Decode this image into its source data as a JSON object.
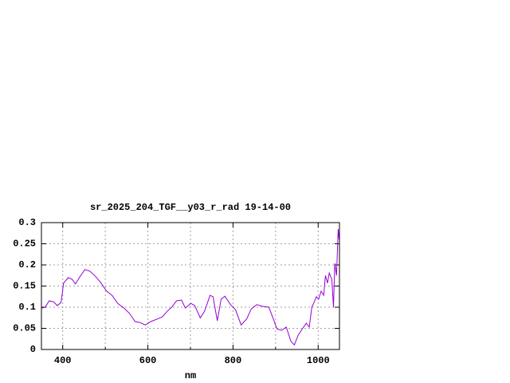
{
  "chart_data": {
    "type": "line",
    "title": "sr_2025_204_TGF__y03_r_rad 19-14-00",
    "xlabel": "nm",
    "xlim": [
      350,
      1050
    ],
    "ylim": [
      0,
      0.3
    ],
    "xticks": [
      400,
      600,
      800,
      1000
    ],
    "xgrid_minor": [
      500,
      700,
      900
    ],
    "yticks": [
      0,
      0.05,
      0.1,
      0.15,
      0.2,
      0.25,
      0.3
    ],
    "grid": true,
    "series": [
      {
        "name": "sr_2025_204_TGF__y03_r_rad",
        "color": "#9400d3",
        "x": [
          350,
          359,
          368,
          378,
          387,
          396,
          402,
          413,
          422,
          430,
          439,
          452,
          464,
          475,
          488,
          503,
          516,
          529,
          544,
          557,
          570,
          581,
          594,
          607,
          622,
          634,
          645,
          656,
          667,
          679,
          688,
          701,
          710,
          723,
          733,
          746,
          753,
          763,
          772,
          781,
          794,
          806,
          819,
          832,
          843,
          856,
          869,
          884,
          893,
          903,
          914,
          925,
          936,
          944,
          953,
          963,
          972,
          979,
          985,
          991,
          996,
          1001,
          1007,
          1013,
          1017,
          1022,
          1026,
          1032,
          1036,
          1039,
          1043,
          1047,
          1049
        ],
        "values": [
          0.098,
          0.1,
          0.115,
          0.113,
          0.104,
          0.111,
          0.157,
          0.17,
          0.166,
          0.155,
          0.17,
          0.189,
          0.185,
          0.175,
          0.16,
          0.138,
          0.128,
          0.109,
          0.098,
          0.085,
          0.066,
          0.064,
          0.058,
          0.066,
          0.072,
          0.077,
          0.09,
          0.1,
          0.115,
          0.117,
          0.098,
          0.109,
          0.104,
          0.075,
          0.09,
          0.128,
          0.125,
          0.068,
          0.119,
          0.126,
          0.106,
          0.094,
          0.058,
          0.072,
          0.096,
          0.106,
          0.102,
          0.1,
          0.077,
          0.049,
          0.045,
          0.053,
          0.019,
          0.011,
          0.034,
          0.049,
          0.062,
          0.053,
          0.1,
          0.113,
          0.125,
          0.119,
          0.138,
          0.128,
          0.175,
          0.157,
          0.181,
          0.166,
          0.1,
          0.204,
          0.175,
          0.285,
          0.26
        ]
      }
    ]
  }
}
